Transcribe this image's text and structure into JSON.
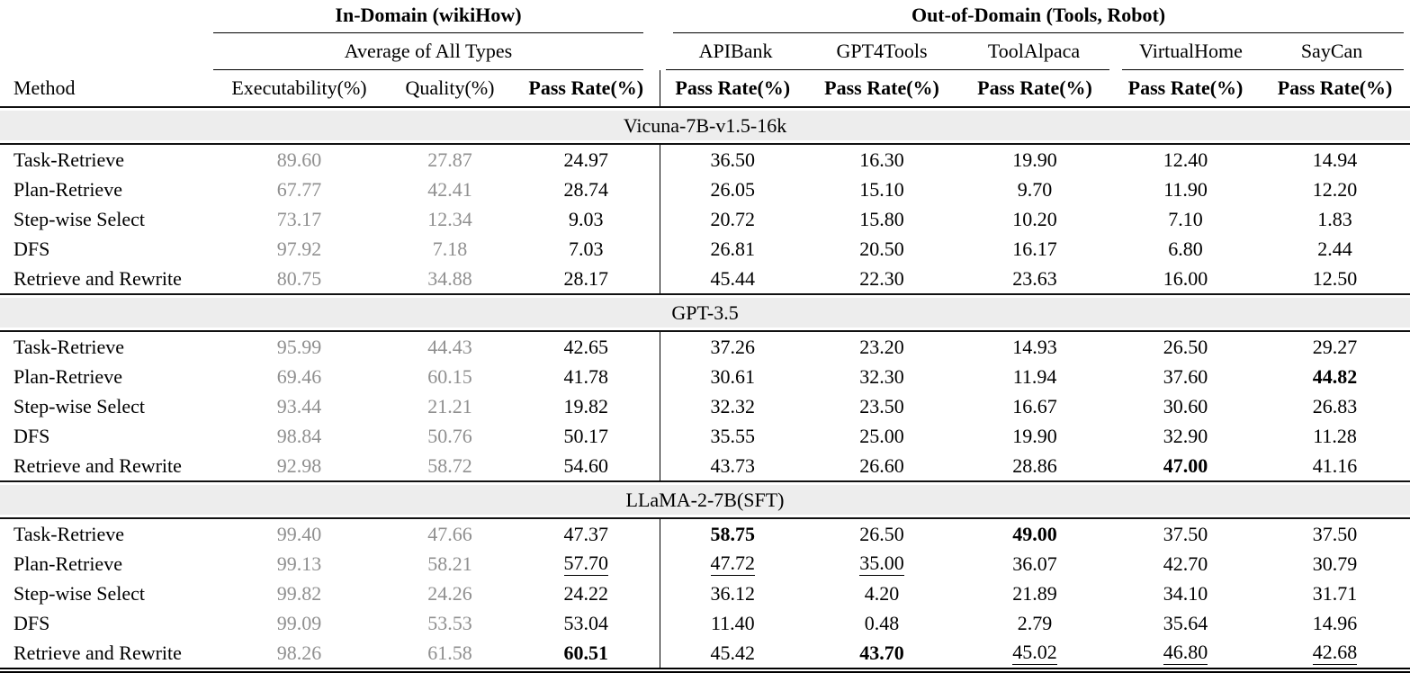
{
  "table": {
    "col_groups": [
      {
        "label": "In-Domain (wikiHow)"
      },
      {
        "label": "Out-of-Domain (Tools, Robot)"
      }
    ],
    "sub_groups": {
      "in_domain": "Average of All Types",
      "out_domain": [
        "APIBank",
        "GPT4Tools",
        "ToolAlpaca",
        "VirtualHome",
        "SayCan"
      ]
    },
    "method_header": "Method",
    "metric_headers": [
      "Executability(%)",
      "Quality(%)",
      "Pass Rate(%)",
      "Pass Rate(%)",
      "Pass Rate(%)",
      "Pass Rate(%)",
      "Pass Rate(%)",
      "Pass Rate(%)"
    ],
    "sections": [
      {
        "model": "Vicuna-7B-v1.5-16k",
        "rows": [
          {
            "method": "Task-Retrieve",
            "values": [
              "89.60",
              "27.87",
              "24.97",
              "36.50",
              "16.30",
              "19.90",
              "12.40",
              "14.94"
            ],
            "styles": [
              "gray",
              "gray",
              "",
              "",
              "",
              "",
              "",
              ""
            ]
          },
          {
            "method": "Plan-Retrieve",
            "values": [
              "67.77",
              "42.41",
              "28.74",
              "26.05",
              "15.10",
              "9.70",
              "11.90",
              "12.20"
            ],
            "styles": [
              "gray",
              "gray",
              "",
              "",
              "",
              "",
              "",
              ""
            ]
          },
          {
            "method": "Step-wise Select",
            "values": [
              "73.17",
              "12.34",
              "9.03",
              "20.72",
              "15.80",
              "10.20",
              "7.10",
              "1.83"
            ],
            "styles": [
              "gray",
              "gray",
              "",
              "",
              "",
              "",
              "",
              ""
            ]
          },
          {
            "method": "DFS",
            "values": [
              "97.92",
              "7.18",
              "7.03",
              "26.81",
              "20.50",
              "16.17",
              "6.80",
              "2.44"
            ],
            "styles": [
              "gray",
              "gray",
              "",
              "",
              "",
              "",
              "",
              ""
            ]
          },
          {
            "method": "Retrieve and Rewrite",
            "values": [
              "80.75",
              "34.88",
              "28.17",
              "45.44",
              "22.30",
              "23.63",
              "16.00",
              "12.50"
            ],
            "styles": [
              "gray",
              "gray",
              "",
              "",
              "",
              "",
              "",
              ""
            ]
          }
        ]
      },
      {
        "model": "GPT-3.5",
        "rows": [
          {
            "method": "Task-Retrieve",
            "values": [
              "95.99",
              "44.43",
              "42.65",
              "37.26",
              "23.20",
              "14.93",
              "26.50",
              "29.27"
            ],
            "styles": [
              "gray",
              "gray",
              "",
              "",
              "",
              "",
              "",
              ""
            ]
          },
          {
            "method": "Plan-Retrieve",
            "values": [
              "69.46",
              "60.15",
              "41.78",
              "30.61",
              "32.30",
              "11.94",
              "37.60",
              "44.82"
            ],
            "styles": [
              "gray",
              "gray",
              "",
              "",
              "",
              "",
              "",
              "bold"
            ]
          },
          {
            "method": "Step-wise Select",
            "values": [
              "93.44",
              "21.21",
              "19.82",
              "32.32",
              "23.50",
              "16.67",
              "30.60",
              "26.83"
            ],
            "styles": [
              "gray",
              "gray",
              "",
              "",
              "",
              "",
              "",
              ""
            ]
          },
          {
            "method": "DFS",
            "values": [
              "98.84",
              "50.76",
              "50.17",
              "35.55",
              "25.00",
              "19.90",
              "32.90",
              "11.28"
            ],
            "styles": [
              "gray",
              "gray",
              "",
              "",
              "",
              "",
              "",
              ""
            ]
          },
          {
            "method": "Retrieve and Rewrite",
            "values": [
              "92.98",
              "58.72",
              "54.60",
              "43.73",
              "26.60",
              "28.86",
              "47.00",
              "41.16"
            ],
            "styles": [
              "gray",
              "gray",
              "",
              "",
              "",
              "",
              "bold",
              ""
            ]
          }
        ]
      },
      {
        "model": "LLaMA-2-7B(SFT)",
        "rows": [
          {
            "method": "Task-Retrieve",
            "values": [
              "99.40",
              "47.66",
              "47.37",
              "58.75",
              "26.50",
              "49.00",
              "37.50",
              "37.50"
            ],
            "styles": [
              "gray",
              "gray",
              "",
              "bold",
              "",
              "bold",
              "",
              ""
            ]
          },
          {
            "method": "Plan-Retrieve",
            "values": [
              "99.13",
              "58.21",
              "57.70",
              "47.72",
              "35.00",
              "36.07",
              "42.70",
              "30.79"
            ],
            "styles": [
              "gray",
              "gray",
              "underline",
              "underline",
              "underline",
              "",
              "",
              ""
            ]
          },
          {
            "method": "Step-wise Select",
            "values": [
              "99.82",
              "24.26",
              "24.22",
              "36.12",
              "4.20",
              "21.89",
              "34.10",
              "31.71"
            ],
            "styles": [
              "gray",
              "gray",
              "",
              "",
              "",
              "",
              "",
              ""
            ]
          },
          {
            "method": "DFS",
            "values": [
              "99.09",
              "53.53",
              "53.04",
              "11.40",
              "0.48",
              "2.79",
              "35.64",
              "14.96"
            ],
            "styles": [
              "gray",
              "gray",
              "",
              "",
              "",
              "",
              "",
              ""
            ]
          },
          {
            "method": "Retrieve and Rewrite",
            "values": [
              "98.26",
              "61.58",
              "60.51",
              "45.42",
              "43.70",
              "45.02",
              "46.80",
              "42.68"
            ],
            "styles": [
              "gray",
              "gray",
              "bold",
              "",
              "bold",
              "underline",
              "underline",
              "underline"
            ]
          }
        ]
      }
    ]
  },
  "colors": {
    "gray_text": "#8f8f8f",
    "band_background": "#ededed",
    "rule_color": "#000000"
  }
}
